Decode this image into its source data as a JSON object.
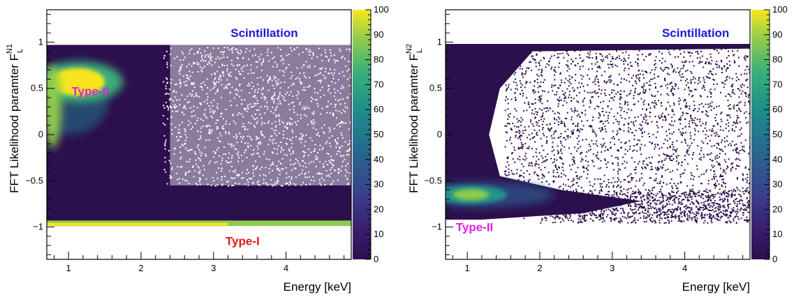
{
  "chart_data": [
    {
      "type": "heatmap",
      "title": "",
      "xlabel": "Energy [keV]",
      "ylabel": "FFT Likelihood paramter F",
      "ylabel_sub": "L",
      "ylabel_sup": "N1",
      "xlim": [
        0.7,
        4.9
      ],
      "ylim": [
        -1.35,
        1.35
      ],
      "x_ticks": [
        1,
        2,
        3,
        4
      ],
      "y_ticks": [
        -1,
        -0.5,
        0,
        0.5,
        1
      ],
      "colorbar": {
        "min": 0,
        "max": 100,
        "ticks": [
          0,
          10,
          20,
          30,
          40,
          50,
          60,
          70,
          80,
          90,
          100
        ]
      },
      "annotations": [
        {
          "text": "Scintillation",
          "x": 3.7,
          "y": 1.1,
          "color": "#1a1ad6"
        },
        {
          "text": "Type-II",
          "x": 1.3,
          "y": 0.47,
          "color": "#e020e0"
        },
        {
          "text": "Type-I",
          "x": 3.4,
          "y": -1.15,
          "color": "#e01a1a"
        }
      ]
    },
    {
      "type": "heatmap",
      "title": "",
      "xlabel": "Energy [keV]",
      "ylabel": "FFT Likelihood paramter F",
      "ylabel_sub": "L",
      "ylabel_sup": "N2",
      "xlim": [
        0.7,
        4.9
      ],
      "ylim": [
        -1.35,
        1.35
      ],
      "x_ticks": [
        1,
        2,
        3,
        4
      ],
      "y_ticks": [
        -1,
        -0.5,
        0,
        0.5,
        1
      ],
      "colorbar": {
        "min": 0,
        "max": 100,
        "ticks": [
          0,
          10,
          20,
          30,
          40,
          50,
          60,
          70,
          80,
          90,
          100
        ]
      },
      "annotations": [
        {
          "text": "Scintillation",
          "x": 4.15,
          "y": 1.1,
          "color": "#1a1ad6"
        },
        {
          "text": "Type-II",
          "x": 1.1,
          "y": -1.0,
          "color": "#e020e0"
        }
      ]
    }
  ]
}
